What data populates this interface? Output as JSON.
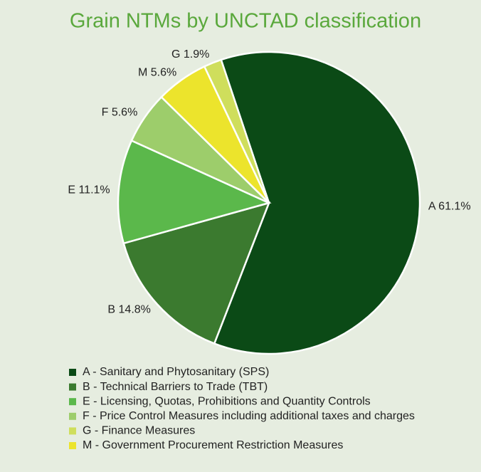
{
  "chart_data": {
    "type": "pie",
    "title": "Grain NTMs by UNCTAD classification",
    "categories": [
      "A",
      "B",
      "E",
      "F",
      "M",
      "G"
    ],
    "values": [
      61.1,
      14.8,
      11.1,
      5.6,
      5.6,
      1.9
    ],
    "value_labels": [
      "61.1%",
      "14.8%",
      "11.1%",
      "5.6%",
      "5.6%",
      "1.9%"
    ],
    "colors": [
      "#0b4a16",
      "#3b7a2f",
      "#5bb84b",
      "#9dcd6b",
      "#ece42c",
      "#cfde5c"
    ],
    "legend": [
      {
        "name": "A - Sanitary and Phytosanitary (SPS)",
        "color": "#0b4a16"
      },
      {
        "name": "B - Technical Barriers to Trade (TBT)",
        "color": "#3b7a2f"
      },
      {
        "name": "E - Licensing, Quotas, Prohibitions and Quantity Controls",
        "color": "#5bb84b"
      },
      {
        "name": "F - Price Control Measures including additional taxes and charges",
        "color": "#9dcd6b"
      },
      {
        "name": "G - Finance Measures",
        "color": "#cfde5c"
      },
      {
        "name": "M - Government Procurement Restriction Measures",
        "color": "#ece42c"
      }
    ]
  }
}
